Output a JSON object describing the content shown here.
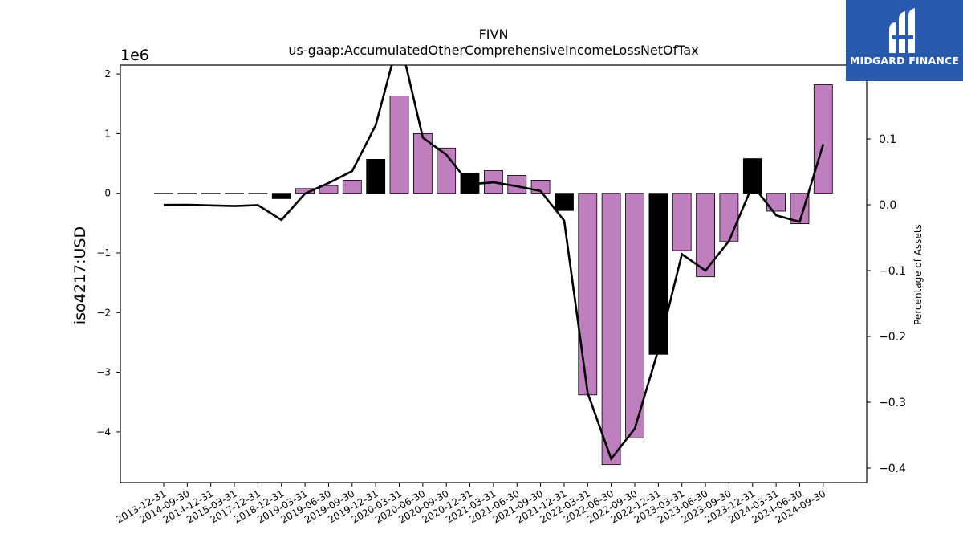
{
  "chart_data": {
    "type": "bar",
    "title": "FIVN",
    "subtitle": "us-gaap:AccumulatedOtherComprehensiveIncomeLossNetOfTax",
    "ylabel": "iso4217:USD",
    "y2label": "Percentage of Assets",
    "y_scale_label": "1e6",
    "ylim": [
      -4.85,
      2.15
    ],
    "y2lim": [
      -0.4,
      0.2
    ],
    "yticks": [
      2,
      1,
      0,
      -1,
      -2,
      -3,
      -4
    ],
    "ytick_labels": [
      "2",
      "1",
      "0",
      "−1",
      "−2",
      "−3",
      "−4"
    ],
    "y2ticks": [
      0.1,
      0.0,
      -0.1,
      -0.2,
      -0.3,
      -0.4
    ],
    "y2tick_labels": [
      "0.1",
      "0.0",
      "−0.1",
      "−0.2",
      "−0.3",
      "−0.4"
    ],
    "categories": [
      "2013-12-31",
      "2014-09-30",
      "2014-12-31",
      "2015-03-31",
      "2017-12-31",
      "2018-12-31",
      "2019-03-31",
      "2019-06-30",
      "2019-09-30",
      "2019-12-31",
      "2020-03-31",
      "2020-06-30",
      "2020-09-30",
      "2020-12-31",
      "2021-03-31",
      "2021-06-30",
      "2021-09-30",
      "2021-12-31",
      "2022-03-31",
      "2022-06-30",
      "2022-09-30",
      "2022-12-31",
      "2023-03-31",
      "2023-06-30",
      "2023-09-30",
      "2023-12-31",
      "2024-03-31",
      "2024-06-30",
      "2024-09-30"
    ],
    "series": [
      {
        "type": "bar",
        "values": [
          0.0,
          0.0,
          0.0,
          0.0,
          0.0,
          -0.09,
          0.08,
          0.13,
          0.22,
          0.57,
          1.63,
          1.0,
          0.76,
          0.33,
          0.38,
          0.3,
          0.22,
          -0.29,
          -3.38,
          -4.55,
          -4.1,
          -2.7,
          -0.96,
          -1.4,
          -0.81,
          0.58,
          -0.3,
          -0.51,
          1.82
        ],
        "highlight": [
          false,
          false,
          false,
          false,
          false,
          true,
          false,
          false,
          false,
          true,
          false,
          false,
          false,
          true,
          false,
          false,
          false,
          true,
          false,
          false,
          false,
          true,
          false,
          false,
          false,
          true,
          false,
          false,
          false
        ]
      },
      {
        "type": "line",
        "values": [
          -0.0003,
          0.0,
          -0.001,
          -0.002,
          -0.0005,
          -0.023,
          0.017,
          0.033,
          0.051,
          0.121,
          0.255,
          0.102,
          0.076,
          0.031,
          0.034,
          0.028,
          0.021,
          -0.024,
          -0.286,
          -0.386,
          -0.34,
          -0.22,
          -0.075,
          -0.1,
          -0.055,
          0.03,
          -0.016,
          -0.026,
          0.092
        ]
      }
    ],
    "colors": {
      "bar": "#bf7fbf",
      "highlight": "#000000",
      "line": "#000000"
    },
    "grid": false,
    "legend": "none"
  },
  "brand": {
    "text": "MIDGARD FINANCE",
    "color": "#2a5ab0"
  }
}
